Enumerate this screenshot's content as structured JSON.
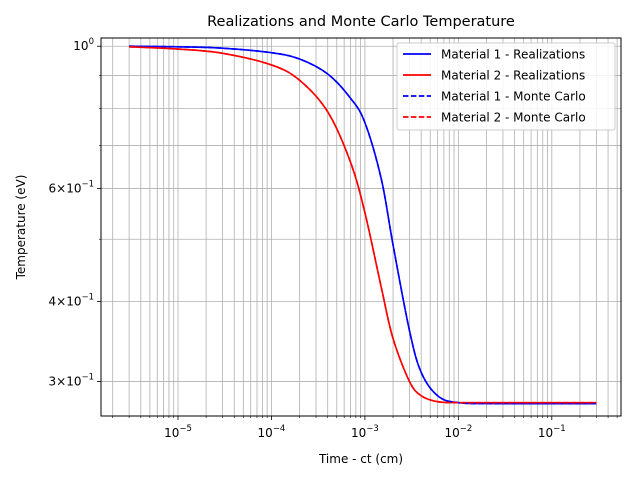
{
  "chart_data": {
    "type": "line",
    "title": "Realizations and Monte Carlo Temperature",
    "xlabel": "Time - ct (cm)",
    "ylabel": "Temperature (eV)",
    "xscale": "log",
    "yscale": "log",
    "xlim": [
      1.5e-06,
      0.55
    ],
    "ylim": [
      0.265,
      1.03
    ],
    "grid": "on (major and minor)",
    "legend_position": "top-right",
    "x_ticks": [
      {
        "value": 1e-05,
        "base": "10",
        "exp": "−5"
      },
      {
        "value": 0.0001,
        "base": "10",
        "exp": "−4"
      },
      {
        "value": 0.001,
        "base": "10",
        "exp": "−3"
      },
      {
        "value": 0.01,
        "base": "10",
        "exp": "−2"
      },
      {
        "value": 0.1,
        "base": "10",
        "exp": "−1"
      }
    ],
    "y_ticks": [
      {
        "value": 1.0,
        "mant": "",
        "base": "10",
        "exp": "0"
      },
      {
        "value": 0.6,
        "mant": "6×",
        "base": "10",
        "exp": "−1"
      },
      {
        "value": 0.4,
        "mant": "4×",
        "base": "10",
        "exp": "−1"
      },
      {
        "value": 0.3,
        "mant": "3×",
        "base": "10",
        "exp": "−1"
      }
    ],
    "y_minor_ticks": [
      0.9,
      0.8,
      0.7,
      0.5
    ],
    "x": [
      3e-06,
      1e-05,
      3e-05,
      0.0001,
      0.0002,
      0.0004,
      0.0007,
      0.001,
      0.0015,
      0.002,
      0.003,
      0.004,
      0.006,
      0.01,
      0.03,
      0.3
    ],
    "series": [
      {
        "name": "Material 1 - Realizations",
        "color": "#0000ff",
        "dash": "solid",
        "values": [
          1.0,
          0.998,
          0.993,
          0.977,
          0.955,
          0.905,
          0.83,
          0.76,
          0.62,
          0.49,
          0.36,
          0.31,
          0.285,
          0.278,
          0.277,
          0.277
        ]
      },
      {
        "name": "Material 2 - Realizations",
        "color": "#ff0000",
        "dash": "solid",
        "values": [
          0.998,
          0.99,
          0.975,
          0.935,
          0.885,
          0.79,
          0.66,
          0.55,
          0.42,
          0.35,
          0.3,
          0.285,
          0.279,
          0.278,
          0.278,
          0.278
        ]
      },
      {
        "name": "Material 1 - Monte Carlo",
        "color": "#0000ff",
        "dash": "dashed",
        "values": [
          1.0,
          0.998,
          0.993,
          0.977,
          0.955,
          0.905,
          0.83,
          0.76,
          0.62,
          0.49,
          0.36,
          0.31,
          0.285,
          0.278,
          0.277,
          0.277
        ]
      },
      {
        "name": "Material 2 - Monte Carlo",
        "color": "#ff0000",
        "dash": "dashed",
        "values": [
          0.998,
          0.99,
          0.975,
          0.935,
          0.885,
          0.79,
          0.66,
          0.55,
          0.42,
          0.35,
          0.3,
          0.285,
          0.279,
          0.278,
          0.278,
          0.278
        ]
      }
    ]
  }
}
